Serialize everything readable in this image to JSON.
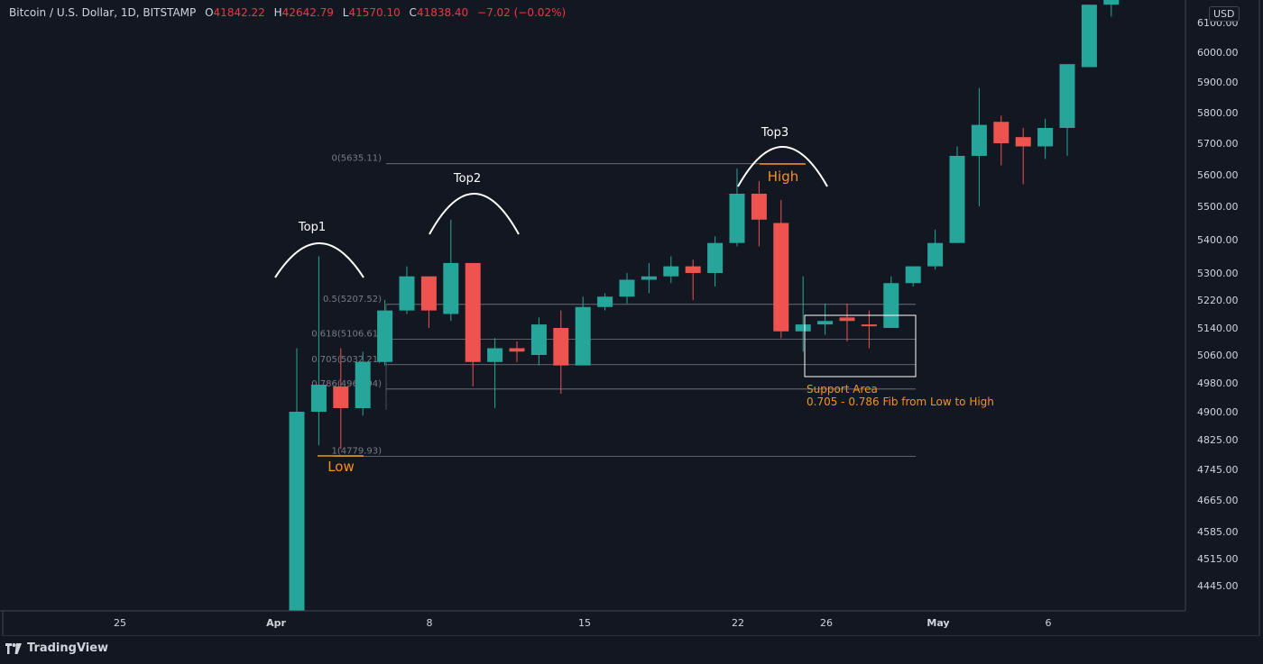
{
  "header": {
    "symbol": "Bitcoin / U.S. Dollar, 1D, BITSTAMP",
    "open_label": "O",
    "open": "41842.22",
    "high_label": "H",
    "high": "42642.79",
    "low_label": "L",
    "low": "41570.10",
    "close_label": "C",
    "close": "41838.40",
    "change": "−7.02 (−0.02%)"
  },
  "currency_badge": "USD",
  "brand": "TradingView",
  "colors": {
    "background": "#131722",
    "up": "#26a69a",
    "down": "#ef5350",
    "annotation": "#f7931a",
    "grid": "#2a2e39"
  },
  "chart_data": {
    "type": "candlestick",
    "y_axis_labels": [
      "6100.00",
      "6000.00",
      "5900.00",
      "5800.00",
      "5700.00",
      "5600.00",
      "5500.00",
      "5400.00",
      "5300.00",
      "5220.00",
      "5140.00",
      "5060.00",
      "4980.00",
      "4900.00",
      "4825.00",
      "4745.00",
      "4665.00",
      "4585.00",
      "4515.00",
      "4445.00"
    ],
    "x_axis_labels": [
      "25",
      "Apr",
      "8",
      "15",
      "22",
      "26",
      "May",
      "6"
    ],
    "candles": [
      {
        "o": 4380,
        "h": 5080,
        "l": 4380,
        "c": 4900
      },
      {
        "o": 4900,
        "h": 5350,
        "l": 4810,
        "c": 4975
      },
      {
        "o": 4970,
        "h": 5080,
        "l": 4800,
        "c": 4910
      },
      {
        "o": 4910,
        "h": 5070,
        "l": 4890,
        "c": 5040
      },
      {
        "o": 5040,
        "h": 5220,
        "l": 5030,
        "c": 5190
      },
      {
        "o": 5190,
        "h": 5320,
        "l": 5180,
        "c": 5290
      },
      {
        "o": 5290,
        "h": 5290,
        "l": 5140,
        "c": 5190
      },
      {
        "o": 5180,
        "h": 5460,
        "l": 5160,
        "c": 5330
      },
      {
        "o": 5330,
        "h": 5330,
        "l": 4970,
        "c": 5040
      },
      {
        "o": 5040,
        "h": 5110,
        "l": 4910,
        "c": 5080
      },
      {
        "o": 5080,
        "h": 5100,
        "l": 5040,
        "c": 5070
      },
      {
        "o": 5060,
        "h": 5170,
        "l": 5030,
        "c": 5150
      },
      {
        "o": 5140,
        "h": 5190,
        "l": 4950,
        "c": 5030
      },
      {
        "o": 5030,
        "h": 5230,
        "l": 5030,
        "c": 5200
      },
      {
        "o": 5200,
        "h": 5240,
        "l": 5190,
        "c": 5230
      },
      {
        "o": 5230,
        "h": 5300,
        "l": 5210,
        "c": 5280
      },
      {
        "o": 5280,
        "h": 5330,
        "l": 5240,
        "c": 5290
      },
      {
        "o": 5290,
        "h": 5350,
        "l": 5270,
        "c": 5320
      },
      {
        "o": 5320,
        "h": 5340,
        "l": 5220,
        "c": 5300
      },
      {
        "o": 5300,
        "h": 5410,
        "l": 5260,
        "c": 5390
      },
      {
        "o": 5390,
        "h": 5620,
        "l": 5380,
        "c": 5540
      },
      {
        "o": 5540,
        "h": 5580,
        "l": 5380,
        "c": 5460
      },
      {
        "o": 5450,
        "h": 5520,
        "l": 5110,
        "c": 5130
      },
      {
        "o": 5130,
        "h": 5290,
        "l": 5070,
        "c": 5150
      },
      {
        "o": 5150,
        "h": 5210,
        "l": 5120,
        "c": 5160
      },
      {
        "o": 5170,
        "h": 5210,
        "l": 5100,
        "c": 5160
      },
      {
        "o": 5150,
        "h": 5190,
        "l": 5080,
        "c": 5145
      },
      {
        "o": 5140,
        "h": 5290,
        "l": 5140,
        "c": 5270
      },
      {
        "o": 5270,
        "h": 5320,
        "l": 5260,
        "c": 5320
      },
      {
        "o": 5320,
        "h": 5430,
        "l": 5310,
        "c": 5390
      },
      {
        "o": 5390,
        "h": 5690,
        "l": 5390,
        "c": 5660
      },
      {
        "o": 5660,
        "h": 5880,
        "l": 5500,
        "c": 5760
      },
      {
        "o": 5770,
        "h": 5790,
        "l": 5630,
        "c": 5700
      },
      {
        "o": 5720,
        "h": 5750,
        "l": 5570,
        "c": 5690
      },
      {
        "o": 5690,
        "h": 5780,
        "l": 5650,
        "c": 5750
      },
      {
        "o": 5750,
        "h": 5960,
        "l": 5660,
        "c": 5960
      },
      {
        "o": 5950,
        "h": 6160,
        "l": 5950,
        "c": 6160
      },
      {
        "o": 6160,
        "h": 6200,
        "l": 6120,
        "c": 6190
      }
    ],
    "fib_levels": [
      {
        "label": "0(5635.11)",
        "value": 5635.11
      },
      {
        "label": "0.5(5207.52)",
        "value": 5207.52
      },
      {
        "label": "0.618(5106.61)",
        "value": 5106.61
      },
      {
        "label": "0.705(5032.21)",
        "value": 5032.21
      },
      {
        "label": "0.786(4962.94)",
        "value": 4962.94
      },
      {
        "label": "1(4779.93)",
        "value": 4779.93
      }
    ],
    "annotations": {
      "top1": "Top1",
      "top2": "Top2",
      "top3": "Top3",
      "high": "High",
      "low": "Low",
      "support_line1": "Support Area",
      "support_line2": "0.705 - 0.786 Fib from Low to High"
    }
  }
}
